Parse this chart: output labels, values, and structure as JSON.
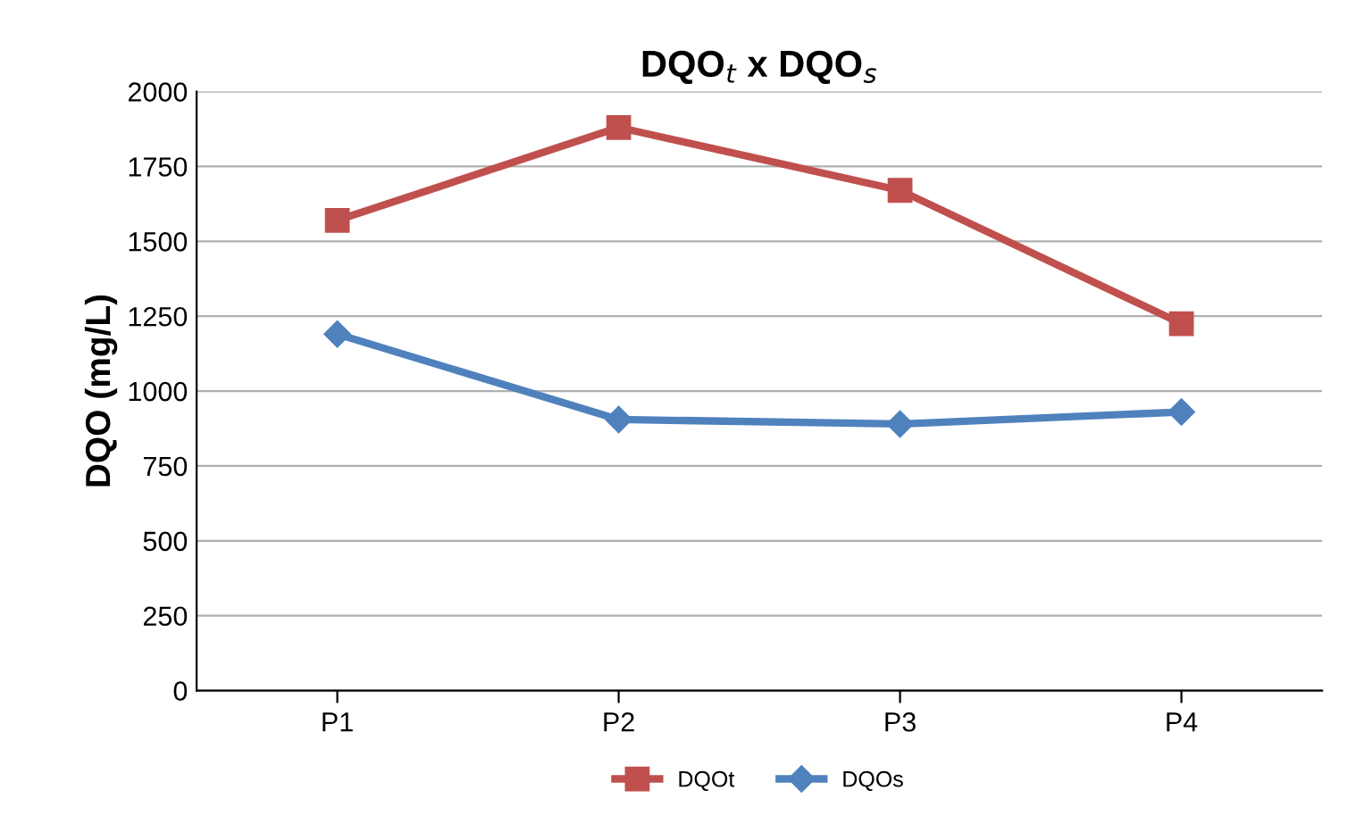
{
  "chart_data": {
    "type": "line",
    "title": "DQO$_{t}$ x DQO$_{s}$",
    "ylabel": "DQO (mg/L)",
    "categories": [
      "P1",
      "P2",
      "P3",
      "P4"
    ],
    "series": [
      {
        "name": "DQOt",
        "color": "#c0504d",
        "marker": "square",
        "values": [
          1570,
          1880,
          1670,
          1225
        ]
      },
      {
        "name": "DQOs",
        "color": "#4f81bd",
        "marker": "diamond",
        "values": [
          1190,
          905,
          890,
          930
        ]
      }
    ],
    "ylim": [
      0,
      2000
    ],
    "yticks": [
      0,
      250,
      500,
      750,
      1000,
      1250,
      1500,
      1750,
      2000
    ],
    "grid": "y",
    "legend": "bottom",
    "line_style": "solid"
  }
}
